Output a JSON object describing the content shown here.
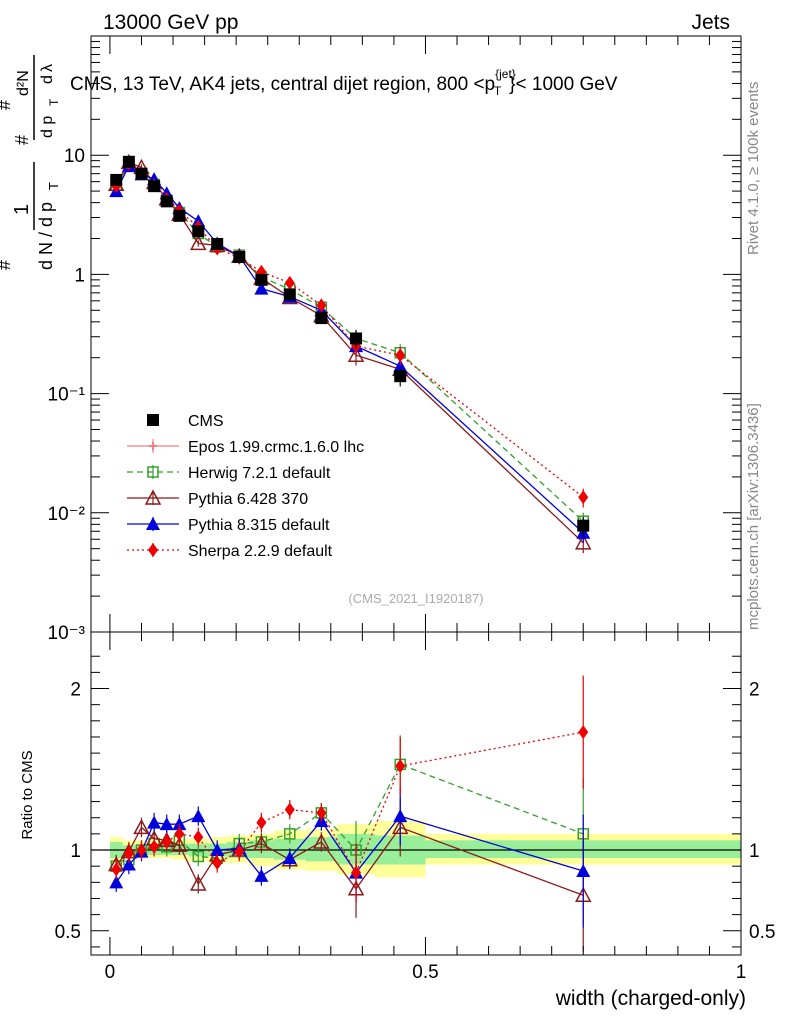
{
  "header": {
    "left": "13000 GeV pp",
    "right": "Jets"
  },
  "side_labels": {
    "rivet": "Rivet 4.1.0, ≥ 100k events",
    "mcplots": "mcplots.cern.ch [arXiv:1306.3436]"
  },
  "chart_data": {
    "type": "scatter",
    "title": "CMS, 13 TeV, AK4 jets, central dijet region, 800 < p_T^{jet} < 1000 GeV",
    "title_parts": {
      "main": "CMS, 13 TeV, AK4 jets, central dijet region, 800 <p",
      "sup": "{jet}",
      "sub": "T",
      "end": "}< 1000 GeV"
    },
    "watermark": "(CMS_2021_I1920187)",
    "xlabel": "width (charged-only)",
    "ylabel": "1/N dN/dp_T d²N/dp_T dλ",
    "ratio_ylabel": "Ratio to CMS",
    "xlim": [
      -0.03,
      1.0
    ],
    "ylim": [
      0.001,
      100
    ],
    "ratio_ylim": [
      0.35,
      2.35
    ],
    "x_ticks": [
      "0",
      "0.5",
      "1"
    ],
    "y_ticks": [
      "10⁻³",
      "10⁻²",
      "10⁻¹",
      "1",
      "10"
    ],
    "ratio_ticks": [
      "0.5",
      "1",
      "2"
    ],
    "x": [
      0.01,
      0.03,
      0.05,
      0.07,
      0.09,
      0.11,
      0.14,
      0.17,
      0.205,
      0.24,
      0.285,
      0.335,
      0.39,
      0.46,
      0.75
    ],
    "series": [
      {
        "name": "CMS",
        "values": [
          6.2,
          8.8,
          7.0,
          5.5,
          4.1,
          3.1,
          2.3,
          1.8,
          1.4,
          0.9,
          0.68,
          0.43,
          0.29,
          0.14,
          0.0078
        ],
        "color": "#000000"
      },
      {
        "name": "Epos 1.99.crmc.1.6.0 lhc",
        "values": [],
        "color": "#f08080"
      },
      {
        "name": "Herwig 7.2.1 default",
        "values": [
          5.6,
          8.3,
          7.0,
          5.7,
          4.2,
          3.3,
          2.2,
          1.7,
          1.45,
          0.95,
          0.75,
          0.53,
          0.29,
          0.22,
          0.0085
        ],
        "color": "#33a02c"
      },
      {
        "name": "Pythia 6.428 370",
        "values": [
          5.7,
          8.7,
          7.9,
          5.9,
          4.3,
          3.2,
          1.82,
          1.75,
          1.42,
          0.93,
          0.64,
          0.45,
          0.21,
          0.16,
          0.0056
        ],
        "color": "#8b1a1a"
      },
      {
        "name": "Pythia 8.315 default",
        "values": [
          5.0,
          8.1,
          6.9,
          6.3,
          4.8,
          3.6,
          2.8,
          1.82,
          1.42,
          0.76,
          0.65,
          0.5,
          0.25,
          0.17,
          0.0068
        ],
        "color": "#0000dd"
      },
      {
        "name": "Sherpa 2.2.9 default",
        "values": [
          5.5,
          8.5,
          7.0,
          5.6,
          4.3,
          3.4,
          2.5,
          1.65,
          1.38,
          1.05,
          0.85,
          0.55,
          0.25,
          0.21,
          0.0135
        ],
        "color": "#ee0000"
      }
    ],
    "ratio_series": [
      {
        "name": "Herwig 7.2.1 default",
        "values": [
          0.9,
          0.94,
          1.0,
          1.04,
          1.02,
          1.06,
          0.96,
          0.95,
          1.04,
          1.05,
          1.1,
          1.23,
          1.0,
          1.53,
          1.1
        ]
      },
      {
        "name": "Pythia 6.428 370",
        "values": [
          0.91,
          0.99,
          1.14,
          1.07,
          1.06,
          1.03,
          0.79,
          0.97,
          1.0,
          1.04,
          0.94,
          1.05,
          0.76,
          1.14,
          0.72
        ]
      },
      {
        "name": "Pythia 8.315 default",
        "values": [
          0.8,
          0.91,
          0.99,
          1.17,
          1.16,
          1.16,
          1.21,
          1.0,
          1.01,
          0.84,
          0.95,
          1.18,
          0.86,
          1.21,
          0.87
        ]
      },
      {
        "name": "Sherpa 2.2.9 default",
        "values": [
          0.88,
          0.98,
          1.0,
          1.02,
          1.05,
          1.1,
          1.08,
          0.92,
          0.99,
          1.17,
          1.25,
          1.23,
          0.86,
          1.52,
          1.73
        ]
      }
    ],
    "bands": [
      {
        "x0": 0.0,
        "x1": 0.02,
        "inner": [
          0.95,
          1.05
        ],
        "outer": [
          0.92,
          1.08
        ]
      },
      {
        "x0": 0.02,
        "x1": 0.04,
        "inner": [
          0.97,
          1.03
        ],
        "outer": [
          0.95,
          1.06
        ]
      },
      {
        "x0": 0.04,
        "x1": 0.06,
        "inner": [
          0.97,
          1.03
        ],
        "outer": [
          0.95,
          1.06
        ]
      },
      {
        "x0": 0.06,
        "x1": 0.08,
        "inner": [
          0.97,
          1.03
        ],
        "outer": [
          0.95,
          1.06
        ]
      },
      {
        "x0": 0.08,
        "x1": 0.1,
        "inner": [
          0.97,
          1.04
        ],
        "outer": [
          0.95,
          1.07
        ]
      },
      {
        "x0": 0.1,
        "x1": 0.125,
        "inner": [
          0.97,
          1.04
        ],
        "outer": [
          0.94,
          1.07
        ]
      },
      {
        "x0": 0.125,
        "x1": 0.155,
        "inner": [
          0.96,
          1.04
        ],
        "outer": [
          0.93,
          1.07
        ]
      },
      {
        "x0": 0.155,
        "x1": 0.185,
        "inner": [
          0.96,
          1.04
        ],
        "outer": [
          0.92,
          1.08
        ]
      },
      {
        "x0": 0.185,
        "x1": 0.22,
        "inner": [
          0.95,
          1.05
        ],
        "outer": [
          0.92,
          1.09
        ]
      },
      {
        "x0": 0.22,
        "x1": 0.26,
        "inner": [
          0.95,
          1.06
        ],
        "outer": [
          0.9,
          1.1
        ]
      },
      {
        "x0": 0.26,
        "x1": 0.31,
        "inner": [
          0.94,
          1.07
        ],
        "outer": [
          0.88,
          1.12
        ]
      },
      {
        "x0": 0.31,
        "x1": 0.36,
        "inner": [
          0.93,
          1.08
        ],
        "outer": [
          0.87,
          1.13
        ]
      },
      {
        "x0": 0.36,
        "x1": 0.42,
        "inner": [
          0.91,
          1.1
        ],
        "outer": [
          0.85,
          1.16
        ]
      },
      {
        "x0": 0.42,
        "x1": 0.5,
        "inner": [
          0.91,
          1.09
        ],
        "outer": [
          0.83,
          1.18
        ]
      },
      {
        "x0": 0.5,
        "x1": 1.0,
        "inner": [
          0.95,
          1.06
        ],
        "outer": [
          0.91,
          1.1
        ]
      }
    ],
    "legend_position": "bottom-left"
  }
}
